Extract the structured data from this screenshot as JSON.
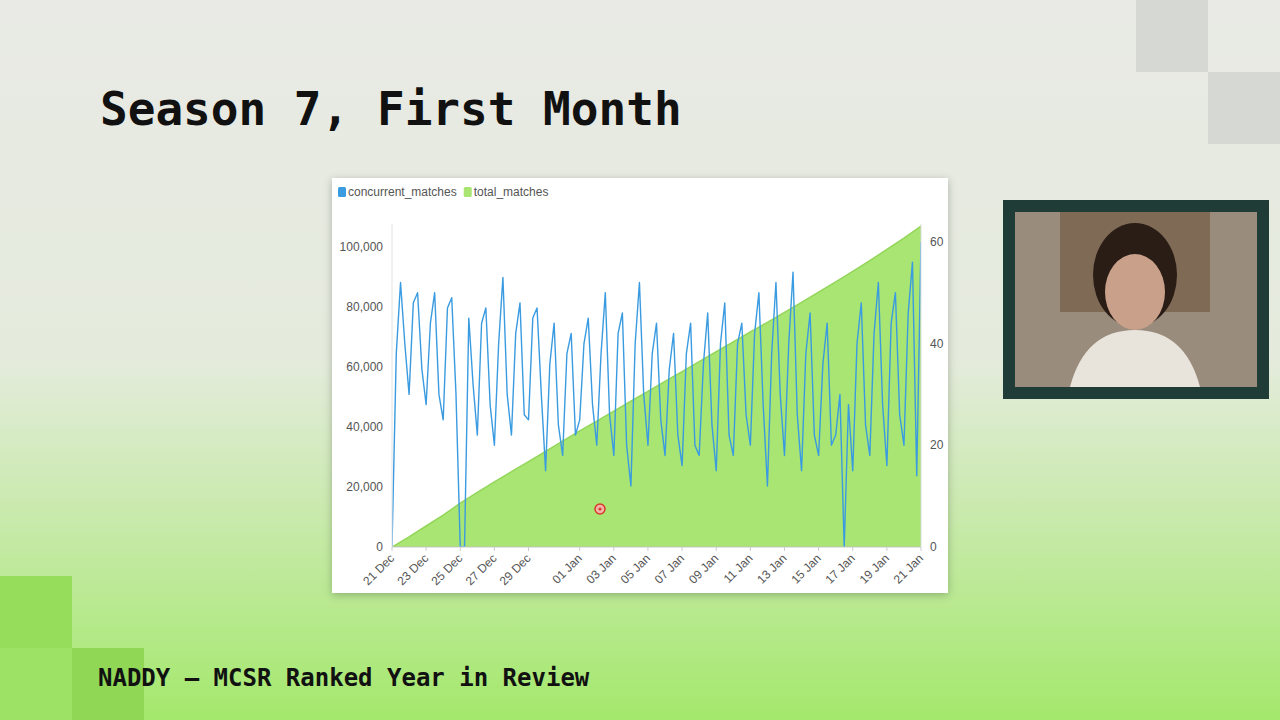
{
  "footer": "NADDY — MCSR Ranked Year in Review",
  "chart_data": {
    "type": "line",
    "title": "Season 7, First Month",
    "legend": "top-left",
    "grid": false,
    "xlim": [
      0,
      31
    ],
    "xticks": [
      {
        "value": 0,
        "label": "21 Dec"
      },
      {
        "value": 2,
        "label": "23 Dec"
      },
      {
        "value": 4,
        "label": "25 Dec"
      },
      {
        "value": 6,
        "label": "27 Dec"
      },
      {
        "value": 8,
        "label": "29 Dec"
      },
      {
        "value": 11,
        "label": "01 Jan"
      },
      {
        "value": 13,
        "label": "03 Jan"
      },
      {
        "value": 15,
        "label": "05 Jan"
      },
      {
        "value": 17,
        "label": "07 Jan"
      },
      {
        "value": 19,
        "label": "09 Jan"
      },
      {
        "value": 21,
        "label": "11 Jan"
      },
      {
        "value": 23,
        "label": "13 Jan"
      },
      {
        "value": 25,
        "label": "15 Jan"
      },
      {
        "value": 27,
        "label": "17 Jan"
      },
      {
        "value": 29,
        "label": "19 Jan"
      },
      {
        "value": 31,
        "label": "21 Jan"
      }
    ],
    "ylim": [
      0,
      107700
    ],
    "yticks": [
      0,
      {
        "value": 20000,
        "label": "20,000"
      },
      {
        "value": 40000,
        "label": "40,000"
      },
      {
        "value": 60000,
        "label": "60,000"
      },
      {
        "value": 80000,
        "label": "80,000"
      },
      {
        "value": 100000,
        "label": "100,000"
      }
    ],
    "y2lim": [
      0,
      63.5
    ],
    "y2ticks": [
      0,
      20,
      40,
      60
    ],
    "series": [
      {
        "name": "concurrent_matches",
        "color": "#3a9be0",
        "type": "line",
        "axis": "y2",
        "x": [
          0,
          0.25,
          0.5,
          0.75,
          1,
          1.25,
          1.5,
          1.75,
          2,
          2.25,
          2.5,
          2.75,
          3,
          3.25,
          3.5,
          3.75,
          4,
          4.25,
          4.5,
          4.75,
          5,
          5.25,
          5.5,
          5.75,
          6,
          6.25,
          6.5,
          6.75,
          7,
          7.25,
          7.5,
          7.75,
          8,
          8.25,
          8.5,
          8.75,
          9,
          9.25,
          9.5,
          9.75,
          10,
          10.25,
          10.5,
          10.75,
          11,
          11.25,
          11.5,
          11.75,
          12,
          12.25,
          12.5,
          12.75,
          13,
          13.25,
          13.5,
          13.75,
          14,
          14.25,
          14.5,
          14.75,
          15,
          15.25,
          15.5,
          15.75,
          16,
          16.25,
          16.5,
          16.75,
          17,
          17.25,
          17.5,
          17.75,
          18,
          18.25,
          18.5,
          18.75,
          19,
          19.25,
          19.5,
          19.75,
          20,
          20.25,
          20.5,
          20.75,
          21,
          21.25,
          21.5,
          21.75,
          22,
          22.25,
          22.5,
          22.75,
          23,
          23.25,
          23.5,
          23.75,
          24,
          24.25,
          24.5,
          24.75,
          25,
          25.25,
          25.5,
          25.75,
          26,
          26.25,
          26.5,
          26.75,
          27,
          27.25,
          27.5,
          27.75,
          28,
          28.25,
          28.5,
          28.75,
          29,
          29.25,
          29.5,
          29.75,
          30,
          30.25,
          30.5,
          30.75,
          31
        ],
        "values": [
          0,
          38,
          52,
          40,
          30,
          48,
          50,
          35,
          28,
          44,
          50,
          30,
          25,
          47,
          49,
          30,
          0,
          0,
          45,
          32,
          22,
          44,
          47,
          28,
          20,
          40,
          53,
          30,
          22,
          42,
          48,
          26,
          25,
          45,
          47,
          30,
          15,
          36,
          44,
          24,
          18,
          38,
          42,
          22,
          25,
          40,
          45,
          28,
          20,
          38,
          50,
          26,
          18,
          42,
          46,
          20,
          12,
          40,
          52,
          30,
          20,
          38,
          44,
          25,
          18,
          35,
          42,
          22,
          16,
          38,
          44,
          20,
          18,
          36,
          46,
          24,
          15,
          40,
          48,
          22,
          18,
          40,
          44,
          26,
          20,
          42,
          50,
          28,
          12,
          38,
          52,
          30,
          18,
          40,
          54,
          26,
          15,
          38,
          46,
          22,
          18,
          36,
          44,
          20,
          22,
          30,
          0,
          28,
          15,
          40,
          48,
          24,
          18,
          42,
          52,
          28,
          16,
          44,
          50,
          26,
          20,
          46,
          56,
          14,
          60
        ]
      },
      {
        "name": "total_matches",
        "color": "#a9e572",
        "type": "area",
        "x": [
          0,
          1,
          2,
          3,
          4,
          5,
          6,
          7,
          8,
          9,
          10,
          11,
          12,
          13,
          14,
          15,
          16,
          17,
          18,
          19,
          20,
          21,
          22,
          23,
          24,
          25,
          26,
          27,
          28,
          29,
          30,
          31
        ],
        "values": [
          0,
          3400,
          7000,
          10600,
          14600,
          18200,
          21700,
          25100,
          28500,
          31900,
          35300,
          38700,
          42000,
          45300,
          48600,
          51900,
          55200,
          58500,
          61800,
          65100,
          68400,
          71700,
          74900,
          78200,
          81600,
          85000,
          88400,
          91900,
          95500,
          99200,
          103000,
          107000
        ]
      }
    ]
  }
}
